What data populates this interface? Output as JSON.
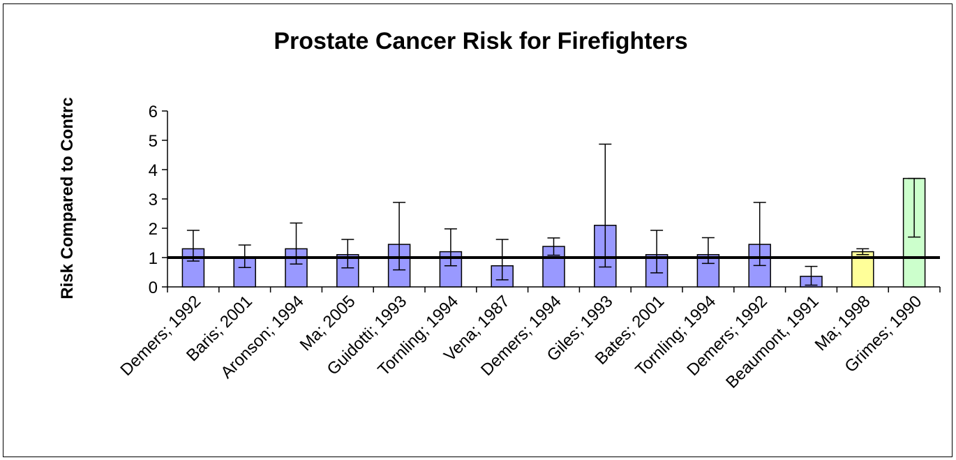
{
  "chart_data": {
    "type": "bar",
    "title": "Prostate Cancer Risk for Firefighters",
    "ylabel": "Risk Compared to Contrc",
    "xlabel": "",
    "ylim": [
      0,
      6
    ],
    "yticks": [
      0,
      1,
      2,
      3,
      4,
      5,
      6
    ],
    "reference_line": 1,
    "grid": false,
    "legend": "none",
    "categories": [
      "Demers; 1992",
      "Baris; 2001",
      "Aronson; 1994",
      "Ma; 2005",
      "Guidotti; 1993",
      "Tornling; 1994",
      "Vena; 1987",
      "Demers; 1994",
      "Giles; 1993",
      "Bates; 2001",
      "Tornling; 1994",
      "Demers; 1992",
      "Beaumont, 1991",
      "Ma; 1998",
      "Grimes; 1990"
    ],
    "values": [
      1.3,
      1.0,
      1.3,
      1.1,
      1.45,
      1.2,
      0.72,
      1.38,
      2.1,
      1.1,
      1.1,
      1.45,
      0.36,
      1.2,
      3.7
    ],
    "error_low": [
      0.88,
      0.66,
      0.78,
      0.65,
      0.58,
      0.72,
      0.24,
      1.08,
      0.68,
      0.48,
      0.8,
      0.73,
      0.06,
      1.1,
      1.7
    ],
    "error_high": [
      1.93,
      1.43,
      2.18,
      1.62,
      2.88,
      1.98,
      1.62,
      1.67,
      4.87,
      1.93,
      1.68,
      2.88,
      0.7,
      1.3,
      3.7
    ],
    "bar_colors": [
      "#9999ff",
      "#9999ff",
      "#9999ff",
      "#9999ff",
      "#9999ff",
      "#9999ff",
      "#9999ff",
      "#9999ff",
      "#9999ff",
      "#9999ff",
      "#9999ff",
      "#9999ff",
      "#9999ff",
      "#ffff99",
      "#ccffcc"
    ]
  }
}
